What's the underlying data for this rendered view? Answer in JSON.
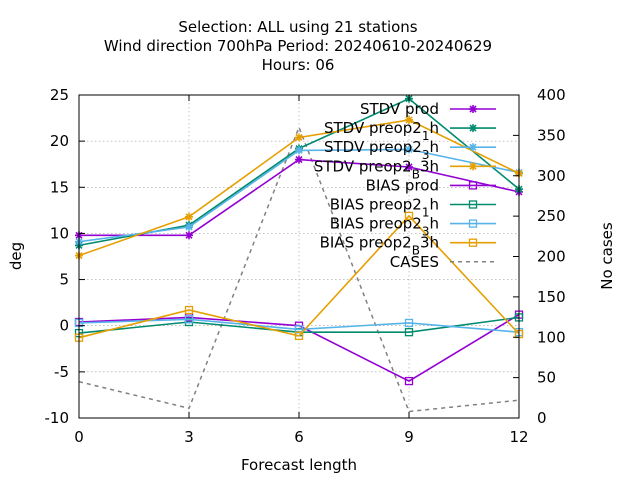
{
  "chart_data": {
    "type": "line",
    "title_lines": [
      "Selection: ALL using    21 stations",
      "Wind direction 700hPa   Period: 20240610-20240629",
      "Hours:  06"
    ],
    "xlabel": "Forecast length",
    "ylabel": "deg",
    "y2label": "No cases",
    "x": [
      0,
      3,
      6,
      9,
      12
    ],
    "xlim": [
      0,
      12
    ],
    "ylim": [
      -10,
      25
    ],
    "y2lim": [
      0,
      400
    ],
    "xticks": [
      "0",
      "3",
      "6",
      "9",
      "12"
    ],
    "yticks": [
      "-10",
      "-5",
      "0",
      "5",
      "10",
      "15",
      "20",
      "25"
    ],
    "y2ticks": [
      "0",
      "50",
      "100",
      "150",
      "200",
      "250",
      "300",
      "350",
      "400"
    ],
    "grid": true,
    "legend_position": "top-right",
    "series": [
      {
        "name": "STDV prod",
        "values": [
          9.8,
          9.8,
          18.0,
          17.2,
          14.5
        ],
        "color": "#9400d3",
        "marker": "star",
        "axis": "y1"
      },
      {
        "name": "STDV preop2_1h",
        "values": [
          8.7,
          10.9,
          19.2,
          24.6,
          14.8
        ],
        "color": "#008b6e",
        "marker": "star",
        "axis": "y1"
      },
      {
        "name": "STDV preop2_3h",
        "values": [
          9.1,
          10.7,
          19.0,
          19.1,
          16.6
        ],
        "color": "#56b4e9",
        "marker": "star",
        "axis": "y1"
      },
      {
        "name": "STDV preop2_B3h",
        "values": [
          7.6,
          11.8,
          20.4,
          22.3,
          16.5
        ],
        "color": "#e69f00",
        "marker": "star",
        "axis": "y1"
      },
      {
        "name": "BIAS prod",
        "values": [
          0.4,
          0.9,
          0.0,
          -6.0,
          1.2
        ],
        "color": "#9400d3",
        "marker": "square",
        "axis": "y1"
      },
      {
        "name": "BIAS preop2_1h",
        "values": [
          -0.8,
          0.4,
          -0.7,
          -0.7,
          0.9
        ],
        "color": "#008b6e",
        "marker": "square",
        "axis": "y1"
      },
      {
        "name": "BIAS preop2_3h",
        "values": [
          0.3,
          0.7,
          -0.4,
          0.3,
          -0.7
        ],
        "color": "#56b4e9",
        "marker": "square",
        "axis": "y1"
      },
      {
        "name": "BIAS preop2_B3h",
        "values": [
          -1.3,
          1.7,
          -1.1,
          11.9,
          -0.9
        ],
        "color": "#e69f00",
        "marker": "square",
        "axis": "y1"
      },
      {
        "name": "CASES",
        "values": [
          45,
          12,
          360,
          8,
          22
        ],
        "color": "#808080",
        "marker": "none",
        "dashed": true,
        "axis": "y2"
      }
    ],
    "legend_entries": [
      {
        "parts": [
          {
            "t": "STDV prod"
          }
        ]
      },
      {
        "parts": [
          {
            "t": "STDV preop2"
          },
          {
            "t": "1",
            "sub": true
          },
          {
            "t": "h"
          }
        ]
      },
      {
        "parts": [
          {
            "t": "STDV preop2"
          },
          {
            "t": "3",
            "sub": true
          },
          {
            "t": "h"
          }
        ]
      },
      {
        "parts": [
          {
            "t": "STDV preop2"
          },
          {
            "t": "B",
            "sub": true
          },
          {
            "t": "3h"
          }
        ]
      },
      {
        "parts": [
          {
            "t": "BIAS prod"
          }
        ]
      },
      {
        "parts": [
          {
            "t": "BIAS preop2"
          },
          {
            "t": "1",
            "sub": true
          },
          {
            "t": "h"
          }
        ]
      },
      {
        "parts": [
          {
            "t": "BIAS preop2"
          },
          {
            "t": "3",
            "sub": true
          },
          {
            "t": "h"
          }
        ]
      },
      {
        "parts": [
          {
            "t": "BIAS preop2"
          },
          {
            "t": "B",
            "sub": true
          },
          {
            "t": "3h"
          }
        ]
      },
      {
        "parts": [
          {
            "t": "CASES"
          }
        ]
      }
    ]
  }
}
